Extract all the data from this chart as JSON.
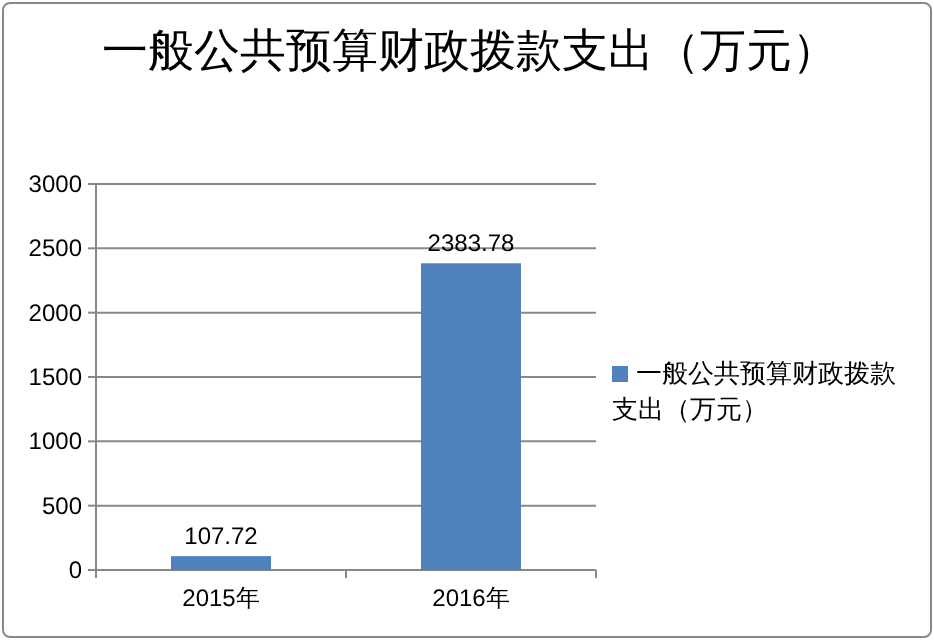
{
  "chart_data": {
    "type": "bar",
    "title": "一般公共预算财政拨款支出（万元）",
    "categories": [
      "2015年",
      "2016年"
    ],
    "series": [
      {
        "name": "一般公共预算财政拨款支出（万元）",
        "color": "#4f81bd",
        "values": [
          107.72,
          2383.78
        ]
      }
    ],
    "ylim": [
      0,
      3000
    ],
    "yticks": [
      0,
      500,
      1000,
      1500,
      2000,
      2500,
      3000
    ],
    "grid": "y",
    "data_labels": true,
    "legend": "right"
  }
}
